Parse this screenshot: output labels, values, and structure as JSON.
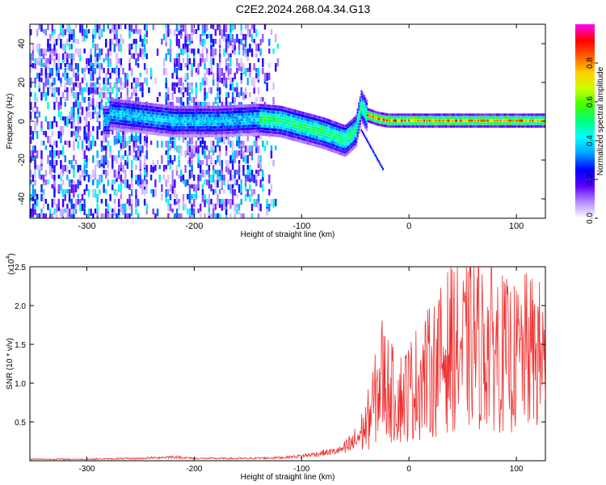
{
  "title": "C2E2.2024.268.04.34.G13",
  "chart_data": [
    {
      "type": "heatmap",
      "xlabel": "Height of straight line (km)",
      "ylabel": "Frequency (Hz)",
      "xlim": [
        -353,
        127
      ],
      "ylim": [
        -50,
        50
      ],
      "xticks": [
        -300,
        -200,
        -100,
        0,
        100
      ],
      "yticks": [
        -40,
        -20,
        0,
        20,
        40
      ],
      "colorbar": {
        "label": "Normalized spectral amplitude",
        "range": [
          0.0,
          1.0
        ],
        "ticks": [
          "0.0",
          "0.2",
          "0.4",
          "0.6",
          "0.8"
        ],
        "tick_values": [
          0,
          0.2,
          0.4,
          0.6,
          0.8
        ],
        "colors": [
          "#ffffff",
          "#b48cff",
          "#5a00ff",
          "#0000ff",
          "#00a0ff",
          "#00ffff",
          "#00ff80",
          "#40ff00",
          "#c8ff00",
          "#ffd000",
          "#ff6000",
          "#ff0000",
          "#ff00ff"
        ]
      },
      "signal_track": {
        "x": [
          -280,
          -250,
          -220,
          -180,
          -140,
          -120,
          -100,
          -80,
          -60,
          -50,
          -45,
          -40,
          -30,
          -20,
          0,
          50,
          100,
          127
        ],
        "frequency_hz": [
          4,
          2,
          0,
          0,
          1,
          0,
          -3,
          -6,
          -10,
          -5,
          8,
          3,
          1,
          0,
          0,
          0,
          0,
          0
        ]
      },
      "noise_region_x": [
        -353,
        -130
      ]
    },
    {
      "type": "line",
      "xlabel": "Height of straight line (km)",
      "ylabel": "SNR (10 * v/v)",
      "y_multiplier": "(x10",
      "y_multiplier_exp": "4",
      "xlim": [
        -353,
        127
      ],
      "ylim": [
        0,
        2.5
      ],
      "xticks": [
        -300,
        -200,
        -100,
        0,
        100
      ],
      "yticks": [
        "0.5",
        "1.0",
        "1.5",
        "2.0",
        "2.5"
      ],
      "ytick_values": [
        0.5,
        1.0,
        1.5,
        2.0,
        2.5
      ],
      "series": [
        {
          "color": "#f03030",
          "x": [
            -353,
            -300,
            -250,
            -220,
            -200,
            -150,
            -120,
            -100,
            -80,
            -70,
            -60,
            -50,
            -40,
            -35,
            -30,
            -25,
            -20,
            -15,
            -10,
            0,
            10,
            20,
            30,
            40,
            50,
            60,
            70,
            80,
            90,
            100,
            110,
            120,
            127
          ],
          "y": [
            0.02,
            0.02,
            0.03,
            0.05,
            0.03,
            0.03,
            0.04,
            0.06,
            0.1,
            0.12,
            0.15,
            0.25,
            0.45,
            0.65,
            0.85,
            1.1,
            0.95,
            0.85,
            0.8,
            0.9,
            1.05,
            1.15,
            1.3,
            1.5,
            1.4,
            1.55,
            1.45,
            1.5,
            1.35,
            1.3,
            1.4,
            1.35,
            1.3
          ]
        }
      ]
    }
  ]
}
